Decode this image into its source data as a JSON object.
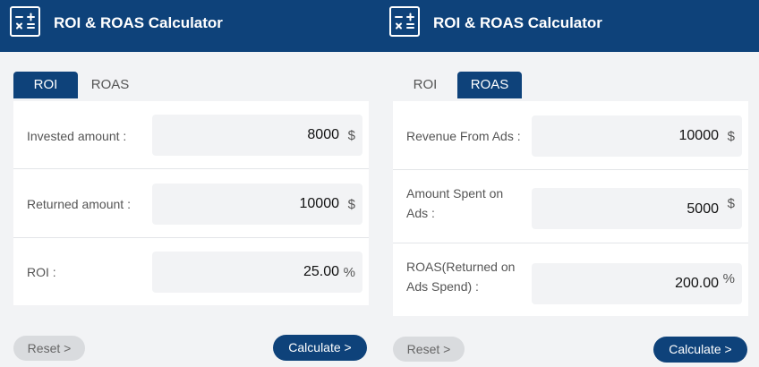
{
  "colors": {
    "primary": "#0e427a",
    "background": "#f2f3f5",
    "button_secondary": "#d9dbde"
  },
  "left_panel": {
    "header": {
      "icon": "calculator-icon",
      "title": "ROI & ROAS Calculator"
    },
    "tabs": [
      {
        "label": "ROI",
        "active": true
      },
      {
        "label": "ROAS",
        "active": false
      }
    ],
    "fields": [
      {
        "label": "Invested amount :",
        "value": "8000",
        "unit": "$"
      },
      {
        "label": "Returned amount :",
        "value": "10000",
        "unit": "$"
      },
      {
        "label": "ROI :",
        "value": "25.00",
        "unit": "%"
      }
    ],
    "reset_label": "Reset >",
    "calculate_label": "Calculate >"
  },
  "right_panel": {
    "header": {
      "icon": "calculator-icon",
      "title": "ROI & ROAS Calculator"
    },
    "tabs": [
      {
        "label": "ROI",
        "active": false
      },
      {
        "label": "ROAS",
        "active": true
      }
    ],
    "fields": [
      {
        "label": "Revenue From Ads :",
        "value": "10000",
        "unit": "$"
      },
      {
        "label_line1": "Amount Spent on",
        "label_line2": "Ads :",
        "value": "5000",
        "unit": "$"
      },
      {
        "label_line1": "ROAS(Returned on",
        "label_line2": "Ads Spend) :",
        "value": "200.00",
        "unit": "%"
      }
    ],
    "reset_label": "Reset >",
    "calculate_label": "Calculate >"
  }
}
